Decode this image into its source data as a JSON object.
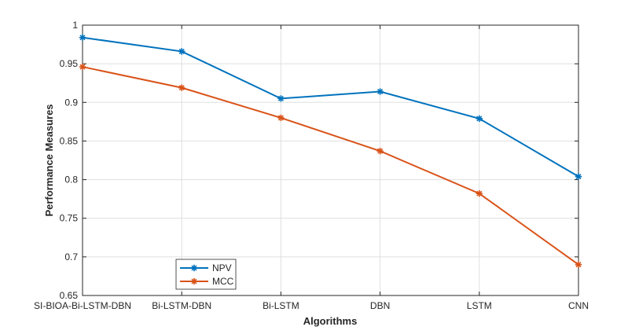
{
  "chart_data": {
    "type": "line",
    "title": "",
    "xlabel": "Algorithms",
    "ylabel": "Performance Measures",
    "categories": [
      "SI-BIOA-Bi-LSTM-DBN",
      "Bi-LSTM-DBN",
      "Bi-LSTM",
      "DBN",
      "LSTM",
      "CNN"
    ],
    "ylim": [
      0.65,
      1
    ],
    "yticks": [
      0.65,
      0.7,
      0.75,
      0.8,
      0.85,
      0.9,
      0.95,
      1
    ],
    "ytick_labels": [
      "0.65",
      "0.7",
      "0.75",
      "0.8",
      "0.85",
      "0.9",
      "0.95",
      "1"
    ],
    "grid": true,
    "legend_position": "bottom-left",
    "marker": "asterisk",
    "series": [
      {
        "name": "NPV",
        "color": "#0072BD",
        "values": [
          0.984,
          0.966,
          0.905,
          0.914,
          0.879,
          0.804
        ]
      },
      {
        "name": "MCC",
        "color": "#D95319",
        "values": [
          0.946,
          0.919,
          0.88,
          0.837,
          0.782,
          0.69
        ]
      }
    ]
  }
}
